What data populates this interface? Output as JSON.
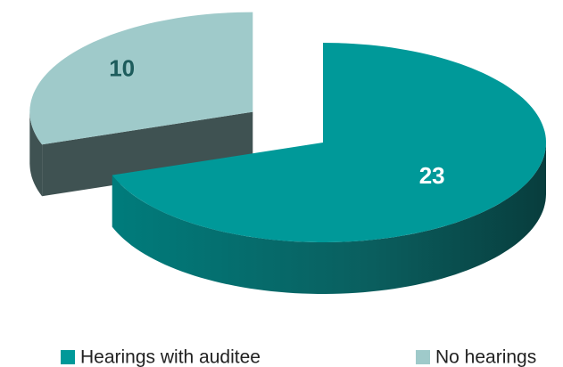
{
  "chart_data": {
    "type": "pie3d",
    "series": [
      {
        "name": "Hearings with auditee",
        "color": "#009999",
        "values": [
          23
        ]
      },
      {
        "name": "No hearings",
        "color": "#9fcaca",
        "values": [
          10
        ]
      }
    ],
    "legend": "bottom"
  }
}
